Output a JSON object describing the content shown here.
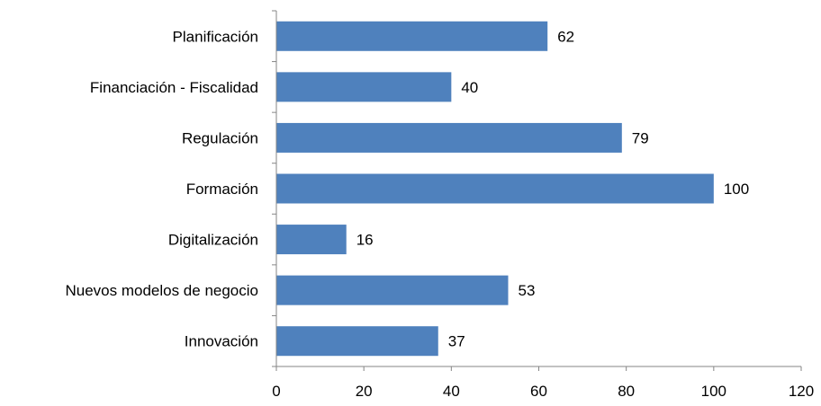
{
  "chart_data": {
    "type": "bar",
    "orientation": "horizontal",
    "categories": [
      "Planificación",
      "Financiación - Fiscalidad",
      "Regulación ",
      "Formación",
      "Digitalización",
      "Nuevos modelos de negocio",
      "Innovación"
    ],
    "values": [
      62,
      40,
      79,
      100,
      16,
      53,
      37
    ],
    "data_labels": [
      "62",
      "40",
      "79",
      "100",
      "16",
      "53",
      "37"
    ],
    "xlim": [
      0,
      120
    ],
    "x_ticks": [
      0,
      20,
      40,
      60,
      80,
      100,
      120
    ],
    "x_tick_labels": [
      "0",
      "20",
      "40",
      "60",
      "80",
      "100",
      "120"
    ],
    "grid": false,
    "legend": "none",
    "colors": {
      "bar": "#4F81BD",
      "axis": "#868686",
      "text": "#000000"
    }
  }
}
